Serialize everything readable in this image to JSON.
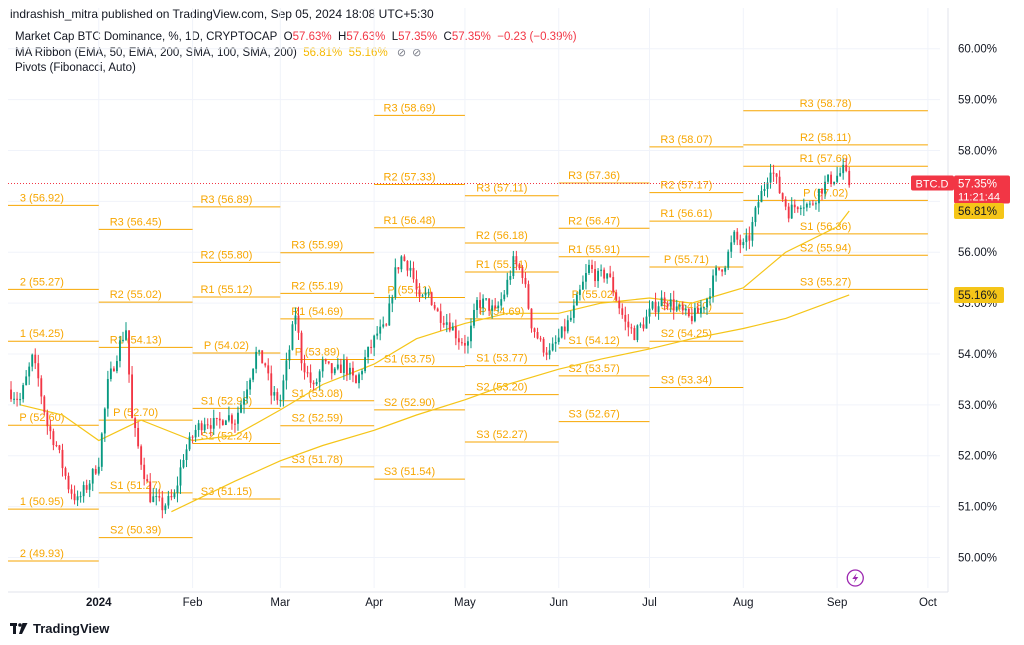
{
  "header": {
    "publisher": "indrashish_mitra published on TradingView.com, Sep 05, 2024 18:08 UTC+5:30"
  },
  "legend": {
    "title": "Market Cap BTC Dominance, %, 1D, CRYPTOCAP",
    "o_label": "O",
    "o_value": "57.63%",
    "h_label": "H",
    "h_value": "57.63%",
    "l_label": "L",
    "l_value": "57.35%",
    "c_label": "C",
    "c_value": "57.35%",
    "change": "−0.23 (−0.39%)",
    "ma_label": "MA Ribbon (EMA, 50, EMA, 200, SMA, 100, SMA, 200)",
    "ma_v1": "56.81%",
    "ma_v2": "55.16%",
    "pivots_label": "Pivots (Fibonacci, Auto)"
  },
  "footer": {
    "brand": "TradingView",
    "logo_icon": "tradingview-logo-icon"
  },
  "colors": {
    "up": "#089981",
    "down": "#f23645",
    "pivot": "#f7a600",
    "ma": "#f5c518",
    "grid": "#f0f3fa",
    "price_tag": "#f23645"
  },
  "chart_data": {
    "type": "candlestick",
    "title": "Market Cap BTC Dominance, %, 1D, CRYPTOCAP",
    "symbol": "BTC.D",
    "y_axis": {
      "ticks": [
        "60.00%",
        "59.00%",
        "58.00%",
        "57.00%",
        "56.00%",
        "55.00%",
        "54.00%",
        "53.00%",
        "52.00%",
        "51.00%",
        "50.00%"
      ],
      "range": [
        49.4,
        60.8
      ]
    },
    "x_axis": {
      "range": [
        "2023-12-02",
        "2024-10-05"
      ],
      "ticks": [
        {
          "date": "2024-01-01",
          "label": "2024",
          "bold": true
        },
        {
          "date": "2024-02-01",
          "label": "Feb"
        },
        {
          "date": "2024-03-01",
          "label": "Mar"
        },
        {
          "date": "2024-04-01",
          "label": "Apr"
        },
        {
          "date": "2024-05-01",
          "label": "May"
        },
        {
          "date": "2024-06-01",
          "label": "Jun"
        },
        {
          "date": "2024-07-01",
          "label": "Jul"
        },
        {
          "date": "2024-08-01",
          "label": "Aug"
        },
        {
          "date": "2024-09-01",
          "label": "Sep"
        },
        {
          "date": "2024-10-01",
          "label": "Oct"
        }
      ]
    },
    "price_tag": {
      "symbol": "BTC.D",
      "value": 57.35,
      "value_label": "57.35%",
      "countdown": "11:21:44"
    },
    "ma_tags": [
      {
        "value": 56.81,
        "label": "56.81%"
      },
      {
        "value": 55.16,
        "label": "55.16%"
      }
    ],
    "close_path": [
      [
        "2023-12-02",
        53.3
      ],
      [
        "2023-12-06",
        53.1
      ],
      [
        "2023-12-10",
        53.9
      ],
      [
        "2023-12-12",
        53.5
      ],
      [
        "2023-12-15",
        52.6
      ],
      [
        "2023-12-18",
        52.2
      ],
      [
        "2023-12-22",
        51.4
      ],
      [
        "2023-12-25",
        51.1
      ],
      [
        "2023-12-29",
        51.5
      ],
      [
        "2024-01-01",
        51.9
      ],
      [
        "2024-01-04",
        53.4
      ],
      [
        "2024-01-08",
        54.2
      ],
      [
        "2024-01-10",
        54.5
      ],
      [
        "2024-01-12",
        52.7
      ],
      [
        "2024-01-15",
        51.9
      ],
      [
        "2024-01-18",
        51.2
      ],
      [
        "2024-01-22",
        51.0
      ],
      [
        "2024-01-26",
        51.2
      ],
      [
        "2024-01-29",
        52.0
      ],
      [
        "2024-02-02",
        52.5
      ],
      [
        "2024-02-05",
        52.7
      ],
      [
        "2024-02-09",
        52.6
      ],
      [
        "2024-02-12",
        52.8
      ],
      [
        "2024-02-15",
        52.7
      ],
      [
        "2024-02-18",
        53.2
      ],
      [
        "2024-02-22",
        54.0
      ],
      [
        "2024-02-25",
        53.8
      ],
      [
        "2024-02-27",
        53.2
      ],
      [
        "2024-03-01",
        53.1
      ],
      [
        "2024-03-04",
        54.1
      ],
      [
        "2024-03-06",
        54.8
      ],
      [
        "2024-03-08",
        53.9
      ],
      [
        "2024-03-12",
        53.3
      ],
      [
        "2024-03-15",
        53.8
      ],
      [
        "2024-03-19",
        53.6
      ],
      [
        "2024-03-22",
        53.8
      ],
      [
        "2024-03-26",
        53.4
      ],
      [
        "2024-03-29",
        53.9
      ],
      [
        "2024-04-02",
        54.4
      ],
      [
        "2024-04-05",
        54.5
      ],
      [
        "2024-04-08",
        55.6
      ],
      [
        "2024-04-10",
        55.9
      ],
      [
        "2024-04-13",
        55.7
      ],
      [
        "2024-04-16",
        55.0
      ],
      [
        "2024-04-19",
        55.2
      ],
      [
        "2024-04-22",
        54.8
      ],
      [
        "2024-04-26",
        54.6
      ],
      [
        "2024-04-29",
        54.3
      ],
      [
        "2024-05-02",
        54.2
      ],
      [
        "2024-05-05",
        55.0
      ],
      [
        "2024-05-08",
        55.0
      ],
      [
        "2024-05-11",
        54.8
      ],
      [
        "2024-05-14",
        55.2
      ],
      [
        "2024-05-17",
        55.8
      ],
      [
        "2024-05-20",
        55.6
      ],
      [
        "2024-05-23",
        54.6
      ],
      [
        "2024-05-26",
        54.2
      ],
      [
        "2024-05-29",
        54.0
      ],
      [
        "2024-06-01",
        54.3
      ],
      [
        "2024-06-05",
        54.7
      ],
      [
        "2024-06-08",
        55.2
      ],
      [
        "2024-06-11",
        55.7
      ],
      [
        "2024-06-14",
        55.5
      ],
      [
        "2024-06-17",
        55.6
      ],
      [
        "2024-06-20",
        55.1
      ],
      [
        "2024-06-23",
        54.6
      ],
      [
        "2024-06-26",
        54.4
      ],
      [
        "2024-06-29",
        54.6
      ],
      [
        "2024-07-02",
        54.9
      ],
      [
        "2024-07-06",
        55.1
      ],
      [
        "2024-07-10",
        54.9
      ],
      [
        "2024-07-14",
        54.7
      ],
      [
        "2024-07-17",
        54.8
      ],
      [
        "2024-07-20",
        55.1
      ],
      [
        "2024-07-23",
        55.6
      ],
      [
        "2024-07-26",
        55.8
      ],
      [
        "2024-07-29",
        56.3
      ],
      [
        "2024-08-01",
        56.1
      ],
      [
        "2024-08-03",
        56.3
      ],
      [
        "2024-08-06",
        57.0
      ],
      [
        "2024-08-08",
        57.3
      ],
      [
        "2024-08-10",
        57.7
      ],
      [
        "2024-08-13",
        57.2
      ],
      [
        "2024-08-16",
        56.8
      ],
      [
        "2024-08-20",
        57.0
      ],
      [
        "2024-08-23",
        56.9
      ],
      [
        "2024-08-26",
        57.2
      ],
      [
        "2024-08-29",
        57.4
      ],
      [
        "2024-09-01",
        57.5
      ],
      [
        "2024-09-03",
        57.6
      ],
      [
        "2024-09-05",
        57.35
      ]
    ],
    "ma_fast": [
      [
        "2023-12-06",
        53.0
      ],
      [
        "2023-12-20",
        52.8
      ],
      [
        "2024-01-01",
        52.3
      ],
      [
        "2024-01-15",
        52.7
      ],
      [
        "2024-02-01",
        52.3
      ],
      [
        "2024-02-15",
        52.4
      ],
      [
        "2024-03-01",
        52.9
      ],
      [
        "2024-03-15",
        53.4
      ],
      [
        "2024-04-01",
        53.8
      ],
      [
        "2024-04-15",
        54.3
      ],
      [
        "2024-05-01",
        54.6
      ],
      [
        "2024-05-15",
        54.8
      ],
      [
        "2024-06-01",
        54.8
      ],
      [
        "2024-06-15",
        55.0
      ],
      [
        "2024-07-01",
        55.1
      ],
      [
        "2024-07-15",
        55.0
      ],
      [
        "2024-08-01",
        55.3
      ],
      [
        "2024-08-15",
        56.0
      ],
      [
        "2024-09-01",
        56.5
      ],
      [
        "2024-09-05",
        56.81
      ]
    ],
    "ma_slow": [
      [
        "2024-01-25",
        50.9
      ],
      [
        "2024-02-15",
        51.5
      ],
      [
        "2024-03-01",
        51.9
      ],
      [
        "2024-03-15",
        52.2
      ],
      [
        "2024-04-01",
        52.5
      ],
      [
        "2024-04-15",
        52.8
      ],
      [
        "2024-05-01",
        53.1
      ],
      [
        "2024-05-15",
        53.4
      ],
      [
        "2024-06-01",
        53.7
      ],
      [
        "2024-06-15",
        53.9
      ],
      [
        "2024-07-01",
        54.1
      ],
      [
        "2024-07-15",
        54.3
      ],
      [
        "2024-08-01",
        54.5
      ],
      [
        "2024-08-15",
        54.7
      ],
      [
        "2024-09-05",
        55.16
      ]
    ],
    "pivot_periods": [
      {
        "start": "2023-12-01",
        "end": "2024-01-01",
        "levels": [
          {
            "label": "3 (56.92)",
            "value": 56.92
          },
          {
            "label": "2 (55.27)",
            "value": 55.27
          },
          {
            "label": "1 (54.25)",
            "value": 54.25
          },
          {
            "label": "P (52.60)",
            "value": 52.6
          },
          {
            "label": "1 (50.95)",
            "value": 50.95
          },
          {
            "label": "2 (49.93)",
            "value": 49.93
          }
        ]
      },
      {
        "start": "2024-01-01",
        "end": "2024-02-01",
        "levels": [
          {
            "label": "R3 (56.45)",
            "value": 56.45
          },
          {
            "label": "R2 (55.02)",
            "value": 55.02
          },
          {
            "label": "R1 (54.13)",
            "value": 54.13
          },
          {
            "label": "P (52.70)",
            "value": 52.7
          },
          {
            "label": "S1 (51.27)",
            "value": 51.27
          },
          {
            "label": "S2 (50.39)",
            "value": 50.39
          }
        ]
      },
      {
        "start": "2024-02-01",
        "end": "2024-03-01",
        "levels": [
          {
            "label": "R3 (56.89)",
            "value": 56.89
          },
          {
            "label": "R2 (55.80)",
            "value": 55.8
          },
          {
            "label": "R1 (55.12)",
            "value": 55.12
          },
          {
            "label": "P (54.02)",
            "value": 54.02
          },
          {
            "label": "S1 (52.93)",
            "value": 52.93
          },
          {
            "label": "S2 (52.24)",
            "value": 52.24
          },
          {
            "label": "S3 (51.15)",
            "value": 51.15
          }
        ]
      },
      {
        "start": "2024-03-01",
        "end": "2024-04-01",
        "levels": [
          {
            "label": "R3 (55.99)",
            "value": 55.99
          },
          {
            "label": "R2 (55.19)",
            "value": 55.19
          },
          {
            "label": "R1 (54.69)",
            "value": 54.69
          },
          {
            "label": "P (53.89)",
            "value": 53.89
          },
          {
            "label": "S1 (53.08)",
            "value": 53.08
          },
          {
            "label": "S2 (52.59)",
            "value": 52.59
          },
          {
            "label": "S3 (51.78)",
            "value": 51.78
          }
        ]
      },
      {
        "start": "2024-04-01",
        "end": "2024-05-01",
        "levels": [
          {
            "label": "R3 (58.69)",
            "value": 58.69
          },
          {
            "label": "R2 (57.33)",
            "value": 57.33
          },
          {
            "label": "R1 (56.48)",
            "value": 56.48
          },
          {
            "label": "P (55.11)",
            "value": 55.11
          },
          {
            "label": "S1 (53.75)",
            "value": 53.75
          },
          {
            "label": "S2 (52.90)",
            "value": 52.9
          },
          {
            "label": "S3 (51.54)",
            "value": 51.54
          }
        ]
      },
      {
        "start": "2024-05-01",
        "end": "2024-06-01",
        "levels": [
          {
            "label": "R3 (57.11)",
            "value": 57.11
          },
          {
            "label": "R2 (56.18)",
            "value": 56.18
          },
          {
            "label": "R1 (55.61)",
            "value": 55.61
          },
          {
            "label": "P (54.69)",
            "value": 54.69
          },
          {
            "label": "S1 (53.77)",
            "value": 53.77
          },
          {
            "label": "S2 (53.20)",
            "value": 53.2
          },
          {
            "label": "S3 (52.27)",
            "value": 52.27
          }
        ]
      },
      {
        "start": "2024-06-01",
        "end": "2024-07-01",
        "levels": [
          {
            "label": "R3 (57.36)",
            "value": 57.36
          },
          {
            "label": "R2 (56.47)",
            "value": 56.47
          },
          {
            "label": "R1 (55.91)",
            "value": 55.91
          },
          {
            "label": "P (55.02)",
            "value": 55.02
          },
          {
            "label": "S1 (54.12)",
            "value": 54.12
          },
          {
            "label": "S2 (53.57)",
            "value": 53.57
          },
          {
            "label": "S3 (52.67)",
            "value": 52.67
          }
        ]
      },
      {
        "start": "2024-07-01",
        "end": "2024-08-01",
        "levels": [
          {
            "label": "R3 (58.07)",
            "value": 58.07
          },
          {
            "label": "R2 (57.17)",
            "value": 57.17
          },
          {
            "label": "R1 (56.61)",
            "value": 56.61
          },
          {
            "label": "P (55.71)",
            "value": 55.71
          },
          {
            "label": "S1 (54.80)",
            "value": 54.8
          },
          {
            "label": "S2 (54.25)",
            "value": 54.25
          },
          {
            "label": "S3 (53.34)",
            "value": 53.34
          }
        ]
      },
      {
        "start": "2024-08-01",
        "end": "2024-10-01",
        "levels": [
          {
            "label": "R3 (58.78)",
            "value": 58.78
          },
          {
            "label": "R2 (58.11)",
            "value": 58.11
          },
          {
            "label": "R1 (57.69)",
            "value": 57.69
          },
          {
            "label": "P (57.02)",
            "value": 57.02
          },
          {
            "label": "S1 (56.36)",
            "value": 56.36
          },
          {
            "label": "S2 (55.94)",
            "value": 55.94
          },
          {
            "label": "S3 (55.27)",
            "value": 55.27
          }
        ]
      }
    ]
  }
}
